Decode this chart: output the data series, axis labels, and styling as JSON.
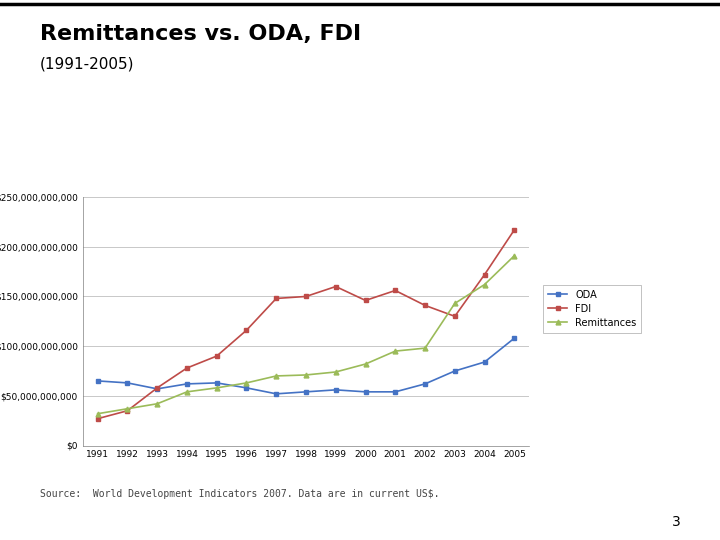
{
  "title": "Remittances vs. ODA, FDI",
  "subtitle": "(1991-2005)",
  "source": "Source:  World Development Indicators 2007. Data are in current US$.",
  "page_number": "3",
  "years": [
    1991,
    1992,
    1993,
    1994,
    1995,
    1996,
    1997,
    1998,
    1999,
    2000,
    2001,
    2002,
    2003,
    2004,
    2005
  ],
  "ODA": [
    65000000000.0,
    63000000000.0,
    57000000000.0,
    62000000000.0,
    63000000000.0,
    58000000000.0,
    52000000000.0,
    54000000000.0,
    56000000000.0,
    54000000000.0,
    54000000000.0,
    62000000000.0,
    75000000000.0,
    84000000000.0,
    108000000000.0
  ],
  "FDI": [
    27000000000.0,
    35000000000.0,
    58000000000.0,
    78000000000.0,
    90000000000.0,
    116000000000.0,
    148000000000.0,
    150000000000.0,
    160000000000.0,
    146000000000.0,
    156000000000.0,
    141000000000.0,
    130000000000.0,
    172000000000.0,
    217000000000.0
  ],
  "Remittances": [
    32000000000.0,
    37000000000.0,
    42000000000.0,
    54000000000.0,
    58000000000.0,
    63000000000.0,
    70000000000.0,
    71000000000.0,
    74000000000.0,
    82000000000.0,
    95000000000.0,
    98000000000.0,
    143000000000.0,
    162000000000.0,
    191000000000.0
  ],
  "ODA_color": "#4472c4",
  "FDI_color": "#be4b48",
  "Rem_color": "#9bbb59",
  "ylim": [
    0,
    250000000000
  ],
  "yticks": [
    0,
    50000000000,
    100000000000,
    150000000000,
    200000000000,
    250000000000
  ],
  "bg_color": "#ffffff",
  "legend_labels": [
    "ODA",
    "FDI",
    "Remittances"
  ],
  "top_border_color": "#000000",
  "grid_color": "#c8c8c8",
  "axis_color": "#808080"
}
